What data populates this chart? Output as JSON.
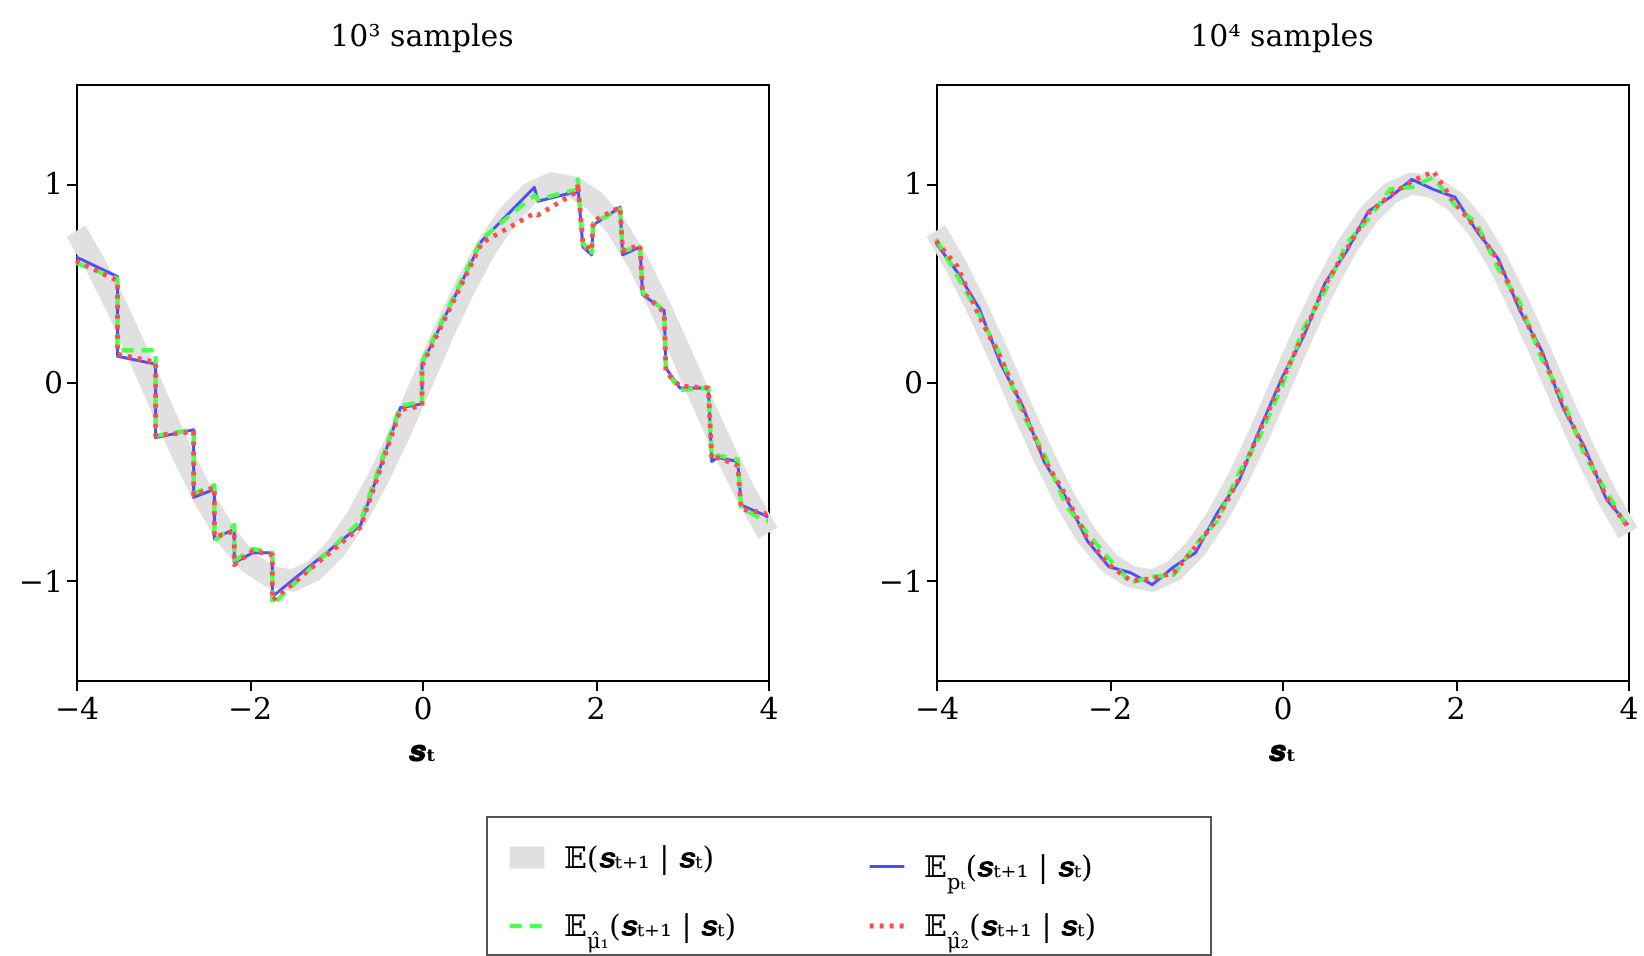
{
  "chart_data": [
    {
      "type": "line",
      "title": "10³ samples",
      "xlabel": "𝒔ₜ",
      "xlim": [
        -4,
        4
      ],
      "ylim": [
        -1.5,
        1.5
      ],
      "xticks": [
        -4,
        -2,
        0,
        2,
        4
      ],
      "yticks": [
        -1,
        0,
        1
      ],
      "legend": "bottom",
      "series": [
        {
          "name": "𝔼(𝒔ₜ₊₁ | 𝒔ₜ)",
          "color": "#e0e0e0",
          "line_style": "solid",
          "x": [
            -4,
            -3.75,
            -3.5,
            -3.25,
            -3,
            -2.75,
            -2.5,
            -2.25,
            -2,
            -1.75,
            -1.5,
            -1.25,
            -1,
            -0.75,
            -0.5,
            -0.25,
            0,
            0.25,
            0.5,
            0.75,
            1,
            1.25,
            1.5,
            1.75,
            2,
            2.25,
            2.5,
            2.75,
            3,
            3.25,
            3.5,
            3.75,
            4
          ],
          "values": [
            0.76,
            0.57,
            0.35,
            0.11,
            -0.14,
            -0.38,
            -0.6,
            -0.78,
            -0.91,
            -0.98,
            -1.0,
            -0.95,
            -0.84,
            -0.68,
            -0.48,
            -0.25,
            0,
            0.25,
            0.48,
            0.68,
            0.84,
            0.95,
            1.0,
            0.98,
            0.91,
            0.78,
            0.6,
            0.38,
            0.14,
            -0.11,
            -0.35,
            -0.57,
            -0.76
          ]
        },
        {
          "name": "𝔼$_{pₜ}$(𝒔ₜ₊₁ | 𝒔ₜ)",
          "color": "#4d4dff",
          "line_style": "solid",
          "x": [
            -4,
            -3.52,
            -3.52,
            -3.08,
            -3.08,
            -2.64,
            -2.64,
            -2.4,
            -2.4,
            -2.17,
            -2.17,
            -1.96,
            -1.73,
            -1.73,
            -0.71,
            -0.25,
            0,
            0,
            0.69,
            1.3,
            1.34,
            1.8,
            1.8,
            1.86,
            1.96,
            1.98,
            2.29,
            2.32,
            2.52,
            2.55,
            2.8,
            2.82,
            2.98,
            3.31,
            3.35,
            3.42,
            3.65,
            3.69,
            3.96,
            4
          ],
          "values": [
            0.63,
            0.53,
            0.13,
            0.09,
            -0.28,
            -0.24,
            -0.58,
            -0.54,
            -0.79,
            -0.74,
            -0.91,
            -0.86,
            -0.86,
            -1.08,
            -0.72,
            -0.13,
            -0.11,
            0.09,
            0.71,
            0.98,
            0.91,
            0.96,
            1.0,
            0.68,
            0.64,
            0.79,
            0.88,
            0.64,
            0.68,
            0.44,
            0.36,
            0.07,
            -0.03,
            -0.03,
            -0.4,
            -0.38,
            -0.4,
            -0.62,
            -0.67,
            -0.68
          ]
        },
        {
          "name": "𝔼$_{μ̂₁}$(𝒔ₜ₊₁ | 𝒔ₜ)",
          "color": "#4dff4d",
          "line_style": "dashed",
          "x": [
            -4,
            -3.52,
            -3.52,
            -3.08,
            -3.08,
            -2.64,
            -2.64,
            -2.4,
            -2.4,
            -2.17,
            -2.17,
            -1.96,
            -1.73,
            -1.73,
            -0.71,
            -0.25,
            0,
            0,
            0.69,
            1.3,
            1.34,
            1.8,
            1.8,
            1.86,
            1.96,
            1.98,
            2.29,
            2.32,
            2.52,
            2.55,
            2.8,
            2.82,
            2.98,
            3.31,
            3.35,
            3.42,
            3.65,
            3.69,
            3.96,
            4
          ],
          "values": [
            0.6,
            0.52,
            0.16,
            0.16,
            -0.27,
            -0.24,
            -0.56,
            -0.52,
            -0.8,
            -0.72,
            -0.9,
            -0.84,
            -0.86,
            -1.12,
            -0.7,
            -0.12,
            -0.1,
            0.1,
            0.72,
            0.94,
            0.92,
            0.97,
            1.02,
            0.7,
            0.64,
            0.8,
            0.87,
            0.66,
            0.68,
            0.45,
            0.36,
            0.06,
            -0.04,
            -0.03,
            -0.38,
            -0.37,
            -0.39,
            -0.63,
            -0.7,
            -0.7
          ]
        },
        {
          "name": "𝔼$_{μ̂₂}$(𝒔ₜ₊₁ | 𝒔ₜ)",
          "color": "#ff4d4d",
          "line_style": "dotted",
          "x": [
            -4,
            -3.52,
            -3.52,
            -3.08,
            -3.08,
            -2.64,
            -2.64,
            -2.4,
            -2.4,
            -2.17,
            -2.17,
            -1.96,
            -1.73,
            -1.73,
            -0.71,
            -0.25,
            0,
            0,
            0.69,
            1.3,
            1.34,
            1.8,
            1.8,
            1.86,
            1.96,
            1.98,
            2.29,
            2.32,
            2.52,
            2.55,
            2.8,
            2.82,
            2.98,
            3.31,
            3.35,
            3.42,
            3.65,
            3.69,
            3.96,
            4
          ],
          "values": [
            0.61,
            0.51,
            0.14,
            0.1,
            -0.27,
            -0.25,
            -0.57,
            -0.53,
            -0.78,
            -0.75,
            -0.92,
            -0.85,
            -0.87,
            -1.1,
            -0.73,
            -0.14,
            -0.12,
            0.08,
            0.7,
            0.85,
            0.84,
            0.96,
            1.0,
            0.7,
            0.66,
            0.81,
            0.88,
            0.66,
            0.69,
            0.45,
            0.35,
            0.05,
            -0.02,
            -0.03,
            -0.39,
            -0.38,
            -0.42,
            -0.64,
            -0.66,
            -0.69
          ]
        }
      ]
    },
    {
      "type": "line",
      "title": "10⁴ samples",
      "xlabel": "𝒔ₜ",
      "xlim": [
        -4,
        4
      ],
      "ylim": [
        -1.5,
        1.5
      ],
      "xticks": [
        -4,
        -2,
        0,
        2,
        4
      ],
      "yticks": [
        -1,
        0,
        1
      ],
      "legend": "bottom",
      "series": [
        {
          "name": "𝔼(𝒔ₜ₊₁ | 𝒔ₜ)",
          "color": "#e0e0e0",
          "line_style": "solid",
          "x": [
            -4,
            -3.75,
            -3.5,
            -3.25,
            -3,
            -2.75,
            -2.5,
            -2.25,
            -2,
            -1.75,
            -1.5,
            -1.25,
            -1,
            -0.75,
            -0.5,
            -0.25,
            0,
            0.25,
            0.5,
            0.75,
            1,
            1.25,
            1.5,
            1.75,
            2,
            2.25,
            2.5,
            2.75,
            3,
            3.25,
            3.5,
            3.75,
            4
          ],
          "values": [
            0.76,
            0.57,
            0.35,
            0.11,
            -0.14,
            -0.38,
            -0.6,
            -0.78,
            -0.91,
            -0.98,
            -1.0,
            -0.95,
            -0.84,
            -0.68,
            -0.48,
            -0.25,
            0,
            0.25,
            0.48,
            0.68,
            0.84,
            0.95,
            1.0,
            0.98,
            0.91,
            0.78,
            0.6,
            0.38,
            0.14,
            -0.11,
            -0.35,
            -0.57,
            -0.76
          ]
        },
        {
          "name": "𝔼$_{pₜ}$(𝒔ₜ₊₁ | 𝒔ₜ)",
          "color": "#4d4dff",
          "line_style": "solid",
          "x": [
            -4,
            -3.75,
            -3.5,
            -3.25,
            -3,
            -2.75,
            -2.5,
            -2.25,
            -2,
            -1.75,
            -1.5,
            -1.25,
            -1,
            -0.75,
            -0.5,
            -0.25,
            0,
            0.25,
            0.5,
            0.75,
            1,
            1.25,
            1.5,
            1.75,
            2,
            2.25,
            2.5,
            2.75,
            3,
            3.25,
            3.5,
            3.75,
            4
          ],
          "values": [
            0.7,
            0.55,
            0.37,
            0.09,
            -0.12,
            -0.4,
            -0.58,
            -0.8,
            -0.93,
            -0.96,
            -1.02,
            -0.93,
            -0.86,
            -0.66,
            -0.5,
            -0.23,
            0.02,
            0.23,
            0.5,
            0.66,
            0.86,
            0.93,
            1.02,
            0.97,
            0.93,
            0.76,
            0.62,
            0.36,
            0.16,
            -0.13,
            -0.33,
            -0.59,
            -0.72
          ]
        },
        {
          "name": "𝔼$_{μ̂₁}$(𝒔ₜ₊₁ | 𝒔ₜ)",
          "color": "#4dff4d",
          "line_style": "dashed",
          "x": [
            -4,
            -3.75,
            -3.5,
            -3.25,
            -3,
            -2.75,
            -2.5,
            -2.25,
            -2,
            -1.75,
            -1.5,
            -1.25,
            -1,
            -0.75,
            -0.5,
            -0.25,
            0,
            0.25,
            0.5,
            0.75,
            1,
            1.25,
            1.5,
            1.75,
            2,
            2.25,
            2.5,
            2.75,
            3,
            3.25,
            3.5,
            3.75,
            4
          ],
          "values": [
            0.72,
            0.53,
            0.34,
            0.13,
            -0.16,
            -0.36,
            -0.62,
            -0.76,
            -0.89,
            -1.01,
            -0.98,
            -0.97,
            -0.82,
            -0.7,
            -0.46,
            -0.27,
            -0.02,
            0.27,
            0.46,
            0.7,
            0.82,
            0.97,
            0.98,
            1.03,
            0.89,
            0.8,
            0.57,
            0.4,
            0.12,
            -0.09,
            -0.37,
            -0.55,
            -0.74
          ]
        },
        {
          "name": "𝔼$_{μ̂₂}$(𝒔ₜ₊₁ | 𝒔ₜ)",
          "color": "#ff4d4d",
          "line_style": "dotted",
          "x": [
            -4,
            -3.75,
            -3.5,
            -3.25,
            -3,
            -2.75,
            -2.5,
            -2.25,
            -2,
            -1.75,
            -1.5,
            -1.25,
            -1,
            -0.75,
            -0.5,
            -0.25,
            0,
            0.25,
            0.5,
            0.75,
            1,
            1.25,
            1.5,
            1.75,
            2,
            2.25,
            2.5,
            2.75,
            3,
            3.25,
            3.5,
            3.75,
            4
          ],
          "values": [
            0.71,
            0.58,
            0.33,
            0.12,
            -0.13,
            -0.39,
            -0.57,
            -0.79,
            -0.92,
            -1.0,
            -0.99,
            -0.96,
            -0.83,
            -0.69,
            -0.49,
            -0.24,
            0.01,
            0.24,
            0.49,
            0.67,
            0.85,
            0.94,
            1.01,
            1.06,
            0.9,
            0.77,
            0.61,
            0.37,
            0.15,
            -0.12,
            -0.34,
            -0.58,
            -0.73
          ]
        }
      ]
    }
  ]
}
